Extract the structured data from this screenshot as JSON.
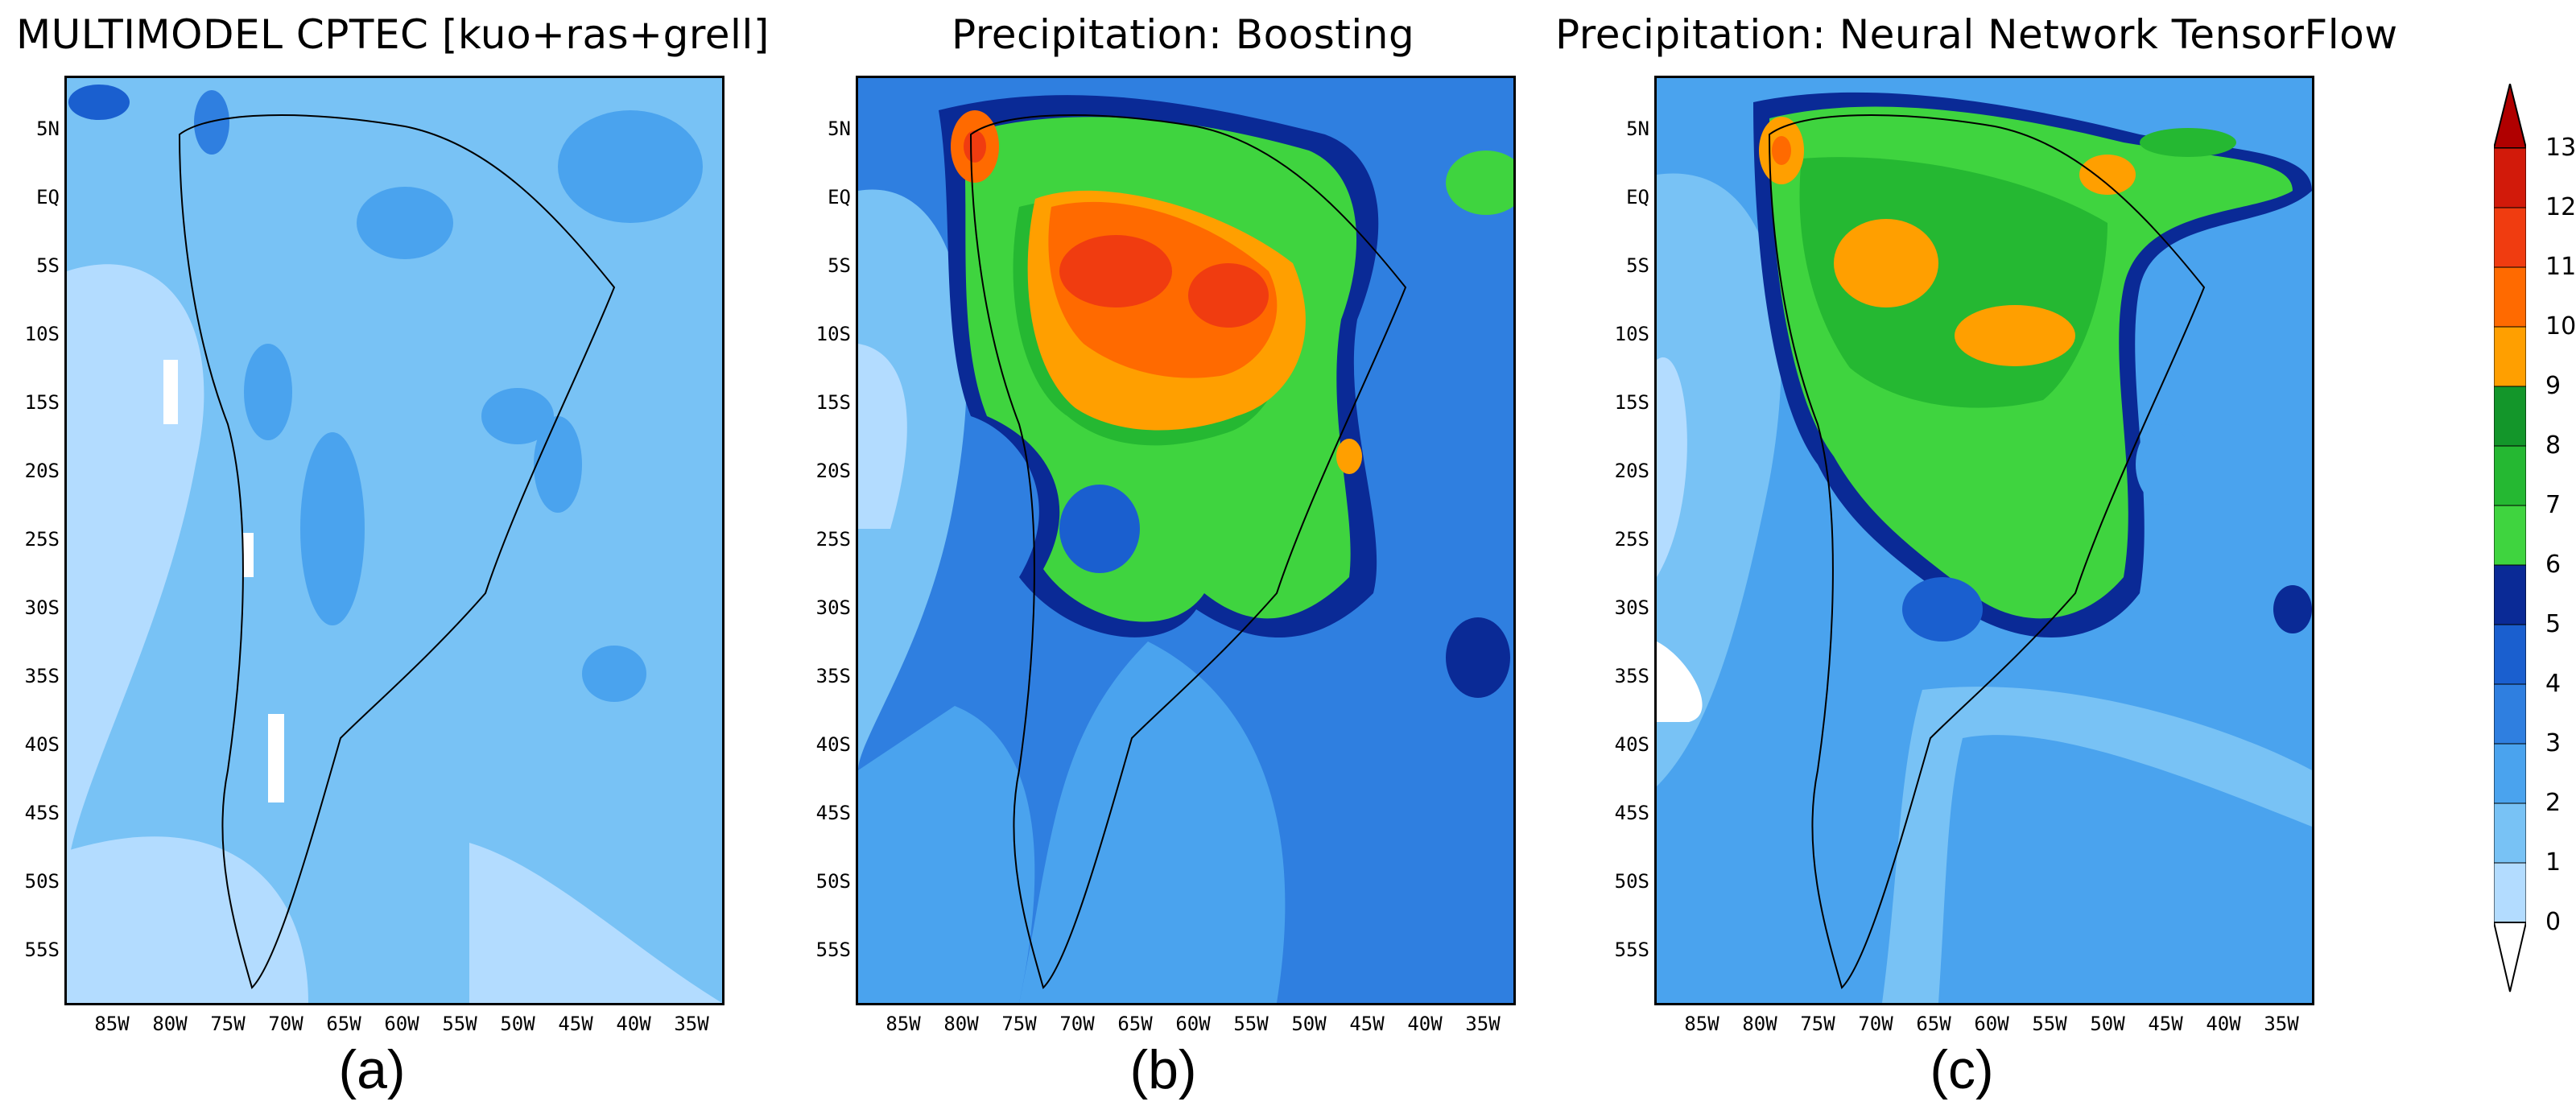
{
  "panels": [
    {
      "title": "MULTIMODEL CPTEC [kuo+ras+grell]",
      "caption": "(a)"
    },
    {
      "title": "Precipitation: Boosting",
      "caption": "(b)"
    },
    {
      "title": "Precipitation: Neural Network TensorFlow",
      "caption": "(c)"
    }
  ],
  "lat_labels": [
    "5N",
    "EQ",
    "5S",
    "10S",
    "15S",
    "20S",
    "25S",
    "30S",
    "35S",
    "40S",
    "45S",
    "50S",
    "55S"
  ],
  "lon_labels": [
    "85W",
    "80W",
    "75W",
    "70W",
    "65W",
    "60W",
    "55W",
    "50W",
    "45W",
    "40W",
    "35W"
  ],
  "colorbar": {
    "labels": [
      "0",
      "1",
      "2",
      "3",
      "4",
      "5",
      "6",
      "7",
      "8",
      "9",
      "10",
      "11",
      "12",
      "13"
    ],
    "colors": [
      "#ffffff",
      "#b3dcff",
      "#78c2f5",
      "#4aa3ee",
      "#2f7fe0",
      "#1a5fcf",
      "#0a2a96",
      "#3fd43f",
      "#25b832",
      "#13962a",
      "#ff9f00",
      "#ff6a00",
      "#f03c10",
      "#d21a0a",
      "#b00000"
    ]
  }
}
